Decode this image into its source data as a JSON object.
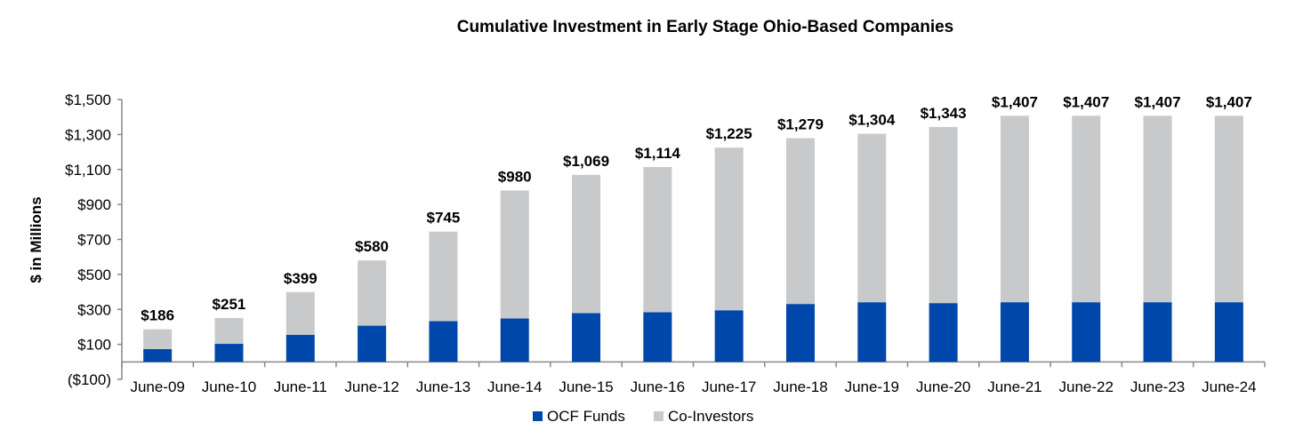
{
  "chart_data": {
    "type": "bar",
    "stacked": true,
    "title": "Cumulative Investment in Early Stage Ohio-Based Companies",
    "xlabel": "",
    "ylabel": "$ in Millions",
    "ylim": [
      -100,
      1500
    ],
    "yticks": [
      -100,
      100,
      300,
      500,
      700,
      900,
      1100,
      1300,
      1500
    ],
    "ytick_labels": [
      "($100)",
      "$100",
      "$300",
      "$500",
      "$700",
      "$900",
      "$1,100",
      "$1,300",
      "$1,500"
    ],
    "grid": false,
    "legend_position": "bottom",
    "categories": [
      "June-09",
      "June-10",
      "June-11",
      "June-12",
      "June-13",
      "June-14",
      "June-15",
      "June-16",
      "June-17",
      "June-18",
      "June-19",
      "June-20",
      "June-21",
      "June-22",
      "June-23",
      "June-24"
    ],
    "series": [
      {
        "name": "OCF Funds",
        "color": "#0047AB",
        "values": [
          73,
          103,
          155,
          207,
          233,
          248,
          279,
          284,
          295,
          331,
          341,
          336,
          341,
          341,
          341,
          341
        ]
      },
      {
        "name": "Co-Investors",
        "color": "#C8C9CB",
        "values": [
          113,
          148,
          244,
          373,
          512,
          732,
          790,
          830,
          930,
          948,
          963,
          1007,
          1066,
          1066,
          1066,
          1066
        ]
      }
    ],
    "totals": [
      186,
      251,
      399,
      580,
      745,
      980,
      1069,
      1114,
      1225,
      1279,
      1304,
      1343,
      1407,
      1407,
      1407,
      1407
    ],
    "data_labels": [
      "$186",
      "$251",
      "$399",
      "$580",
      "$745",
      "$980",
      "$1,069",
      "$1,114",
      "$1,225",
      "$1,279",
      "$1,304",
      "$1,343",
      "$1,407",
      "$1,407",
      "$1,407",
      "$1,407"
    ]
  }
}
